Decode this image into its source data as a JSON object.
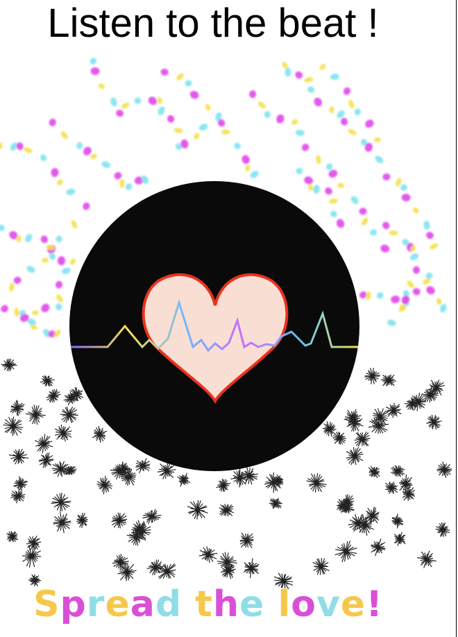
{
  "poster": {
    "title": "Listen to the beat !",
    "tagline": "Spread the love!",
    "colors": {
      "background": "#ffffff",
      "disc": "#0a0a0a",
      "heart_fill": "#f9ded4",
      "heart_stroke": "#e8321d",
      "dot_yellow": "#f5e04a",
      "dot_cyan": "#7fe3ef",
      "dot_magenta": "#e046e8",
      "sparkle": "#222222",
      "tagline_palette": [
        "#f5c84c",
        "#d94fd6",
        "#8fdde6"
      ]
    },
    "icons": {
      "disc": "vinyl-disc-icon",
      "heart": "heart-icon",
      "pulse": "heartbeat-line-icon",
      "dots": "confetti-dots",
      "sparkles": "starburst-sparkles"
    }
  }
}
